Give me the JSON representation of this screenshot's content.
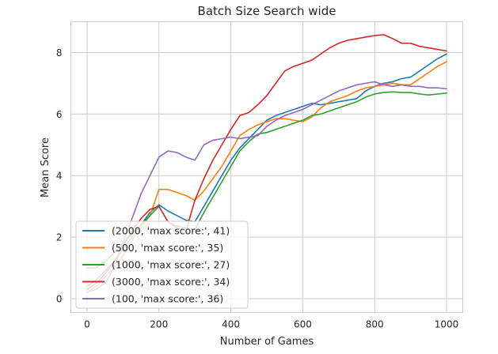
{
  "chart_data": {
    "type": "line",
    "title": "Batch Size Search wide",
    "xlabel": "Number of Games",
    "ylabel": "Mean Score",
    "xlim": [
      -45,
      1045
    ],
    "ylim": [
      -0.45,
      9.0
    ],
    "xticks": [
      0,
      200,
      400,
      600,
      800,
      1000
    ],
    "yticks": [
      0,
      2,
      4,
      6,
      8
    ],
    "xtick_labels": [
      "0",
      "200",
      "400",
      "600",
      "800",
      "1000"
    ],
    "ytick_labels": [
      "0",
      "2",
      "4",
      "6",
      "8"
    ],
    "grid": true,
    "legend_position": "lower-left",
    "series": [
      {
        "name": "(2000, 'max score:', 41)",
        "color": "#1f77b4",
        "x": [
          0,
          25,
          50,
          75,
          100,
          125,
          150,
          175,
          200,
          225,
          250,
          275,
          300,
          325,
          350,
          375,
          400,
          425,
          450,
          475,
          500,
          525,
          550,
          575,
          600,
          625,
          650,
          675,
          700,
          725,
          750,
          775,
          800,
          825,
          850,
          875,
          900,
          925,
          950,
          975,
          1000
        ],
        "y": [
          0.4,
          0.6,
          0.9,
          1.2,
          1.6,
          2.0,
          2.4,
          2.8,
          3.05,
          2.85,
          2.7,
          2.55,
          2.5,
          3.0,
          3.5,
          4.0,
          4.5,
          4.9,
          5.2,
          5.5,
          5.8,
          5.95,
          6.05,
          6.15,
          6.25,
          6.35,
          6.3,
          6.35,
          6.4,
          6.45,
          6.5,
          6.75,
          6.9,
          7.0,
          7.05,
          7.15,
          7.2,
          7.4,
          7.6,
          7.8,
          7.95
        ]
      },
      {
        "name": "(500, 'max score:', 35)",
        "color": "#ff7f0e",
        "x": [
          0,
          25,
          50,
          75,
          100,
          125,
          150,
          175,
          200,
          225,
          250,
          275,
          300,
          325,
          350,
          375,
          400,
          425,
          450,
          475,
          500,
          525,
          550,
          575,
          600,
          625,
          650,
          675,
          700,
          725,
          750,
          775,
          800,
          825,
          850,
          875,
          900,
          925,
          950,
          975,
          1000
        ],
        "y": [
          0.2,
          0.4,
          0.7,
          1.0,
          1.4,
          1.9,
          2.3,
          2.7,
          3.55,
          3.55,
          3.45,
          3.35,
          3.2,
          3.5,
          3.9,
          4.3,
          4.8,
          5.3,
          5.5,
          5.65,
          5.75,
          5.85,
          5.85,
          5.8,
          5.75,
          5.9,
          6.2,
          6.4,
          6.5,
          6.6,
          6.75,
          6.85,
          6.9,
          6.95,
          7.0,
          6.95,
          6.95,
          7.15,
          7.35,
          7.55,
          7.7
        ]
      },
      {
        "name": "(1000, 'max score:', 27)",
        "color": "#2ca02c",
        "x": [
          0,
          25,
          50,
          75,
          100,
          125,
          150,
          175,
          200,
          225,
          250,
          275,
          300,
          325,
          350,
          375,
          400,
          425,
          450,
          475,
          500,
          525,
          550,
          575,
          600,
          625,
          650,
          675,
          700,
          725,
          750,
          775,
          800,
          825,
          850,
          875,
          900,
          925,
          950,
          975,
          1000
        ],
        "y": [
          1.0,
          1.0,
          1.2,
          1.5,
          1.8,
          2.1,
          2.4,
          2.7,
          3.0,
          2.5,
          2.35,
          2.3,
          2.25,
          2.8,
          3.3,
          3.8,
          4.3,
          4.8,
          5.1,
          5.35,
          5.4,
          5.5,
          5.6,
          5.7,
          5.8,
          5.95,
          6.0,
          6.1,
          6.2,
          6.3,
          6.4,
          6.55,
          6.65,
          6.7,
          6.72,
          6.7,
          6.7,
          6.65,
          6.62,
          6.65,
          6.68
        ]
      },
      {
        "name": "(3000, 'max score:', 34)",
        "color": "#d62728",
        "x": [
          0,
          25,
          50,
          75,
          100,
          125,
          150,
          175,
          200,
          225,
          250,
          275,
          300,
          325,
          350,
          375,
          400,
          425,
          450,
          475,
          500,
          525,
          550,
          575,
          600,
          625,
          650,
          675,
          700,
          725,
          750,
          775,
          800,
          825,
          850,
          875,
          900,
          925,
          950,
          975,
          1000
        ],
        "y": [
          0.3,
          0.5,
          0.8,
          1.2,
          1.7,
          2.2,
          2.6,
          2.9,
          3.0,
          2.5,
          2.3,
          2.2,
          3.2,
          3.9,
          4.5,
          5.0,
          5.5,
          5.95,
          6.05,
          6.3,
          6.6,
          7.0,
          7.4,
          7.55,
          7.65,
          7.75,
          7.95,
          8.15,
          8.3,
          8.4,
          8.45,
          8.5,
          8.55,
          8.58,
          8.45,
          8.3,
          8.3,
          8.2,
          8.15,
          8.1,
          8.05
        ]
      },
      {
        "name": "(100, 'max score:', 36)",
        "color": "#9467bd",
        "x": [
          0,
          25,
          50,
          75,
          100,
          125,
          150,
          175,
          200,
          225,
          250,
          275,
          300,
          325,
          350,
          375,
          400,
          425,
          450,
          475,
          500,
          525,
          550,
          575,
          600,
          625,
          650,
          675,
          700,
          725,
          750,
          775,
          800,
          825,
          850,
          875,
          900,
          925,
          950,
          975,
          1000
        ],
        "y": [
          0.2,
          0.3,
          0.5,
          1.0,
          1.8,
          2.6,
          3.4,
          4.0,
          4.6,
          4.8,
          4.75,
          4.6,
          4.5,
          5.0,
          5.15,
          5.2,
          5.25,
          5.2,
          5.25,
          5.3,
          5.6,
          5.8,
          5.95,
          6.05,
          6.15,
          6.3,
          6.45,
          6.6,
          6.75,
          6.85,
          6.95,
          7.0,
          7.05,
          6.95,
          6.9,
          6.95,
          6.9,
          6.9,
          6.85,
          6.85,
          6.82
        ]
      }
    ]
  }
}
